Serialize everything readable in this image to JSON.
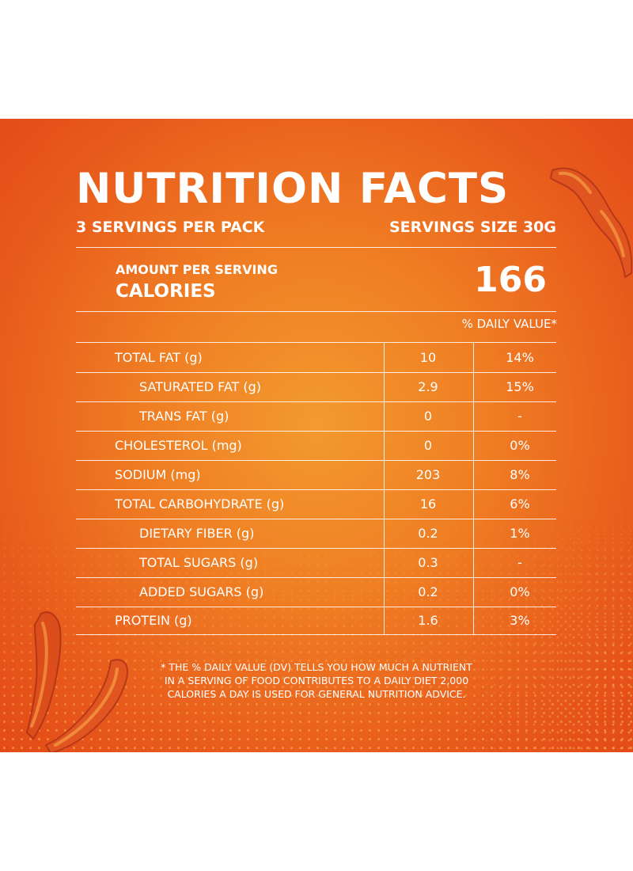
{
  "title": "NUTRITION FACTS",
  "servings_per_pack": "3 SERVINGS PER PACK",
  "serving_size": "SERVINGS SIZE 30G",
  "amount_per_serving": "AMOUNT PER SERVING",
  "calories_label": "CALORIES",
  "calories_value": "166",
  "daily_value_header": "% DAILY VALUE*",
  "nutrients": [
    {
      "name": "TOTAL FAT (g)",
      "amount": "10",
      "dv": "14%"
    },
    {
      "name": "SATURATED FAT (g)",
      "amount": "2.9",
      "dv": "15%"
    },
    {
      "name": "TRANS FAT (g)",
      "amount": "0",
      "dv": "-"
    },
    {
      "name": "CHOLESTEROL (mg)",
      "amount": "0",
      "dv": "0%"
    },
    {
      "name": "SODIUM (mg)",
      "amount": "203",
      "dv": "8%"
    },
    {
      "name": "TOTAL CARBOHYDRATE (g)",
      "amount": "16",
      "dv": "6%"
    },
    {
      "name": "DIETARY FIBER (g)",
      "amount": "0.2",
      "dv": "1%"
    },
    {
      "name": "TOTAL SUGARS (g)",
      "amount": "0.3",
      "dv": "-"
    },
    {
      "name": "ADDED SUGARS (g)",
      "amount": "0.2",
      "dv": "0%"
    },
    {
      "name": "PROTEIN (g)",
      "amount": "1.6",
      "dv": "3%"
    }
  ],
  "footnote": "* THE % DAILY VALUE (DV) TELLS YOU HOW MUCH A NUTRIENT IN A SERVING OF FOOD CONTRIBUTES TO A DAILY DIET 2,000 CALORIES A DAY IS USED FOR GENERAL NUTRITION ADVICE.",
  "colors": {
    "background": "#e85a1c",
    "center_glow": "#f39a2e",
    "text": "#ffffff"
  }
}
